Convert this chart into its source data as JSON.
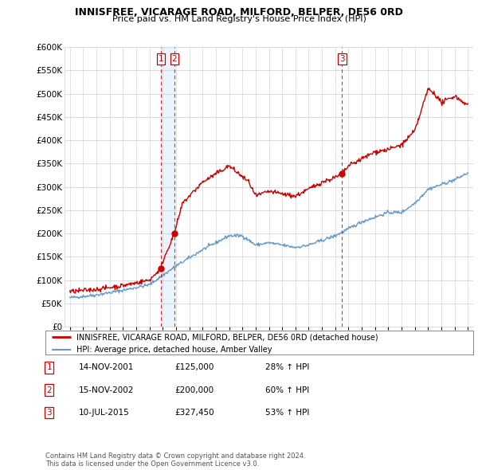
{
  "title": "INNISFREE, VICARAGE ROAD, MILFORD, BELPER, DE56 0RD",
  "subtitle": "Price paid vs. HM Land Registry's House Price Index (HPI)",
  "legend_line1": "INNISFREE, VICARAGE ROAD, MILFORD, BELPER, DE56 0RD (detached house)",
  "legend_line2": "HPI: Average price, detached house, Amber Valley",
  "footer": "Contains HM Land Registry data © Crown copyright and database right 2024.\nThis data is licensed under the Open Government Licence v3.0.",
  "transactions": [
    {
      "num": 1,
      "date": "14-NOV-2001",
      "price": "£125,000",
      "change": "28% ↑ HPI",
      "year": 2001.87,
      "val": 125000
    },
    {
      "num": 2,
      "date": "15-NOV-2002",
      "price": "£200,000",
      "change": "60% ↑ HPI",
      "year": 2002.87,
      "val": 200000
    },
    {
      "num": 3,
      "date": "10-JUL-2015",
      "price": "£327,450",
      "change": "53% ↑ HPI",
      "year": 2015.52,
      "val": 327450
    }
  ],
  "ylim": [
    0,
    600000
  ],
  "yticks": [
    0,
    50000,
    100000,
    150000,
    200000,
    250000,
    300000,
    350000,
    400000,
    450000,
    500000,
    550000,
    600000
  ],
  "red_color": "#cc0000",
  "blue_color": "#6699cc",
  "vline_color": "#cc0000",
  "bg_color": "#ffffff",
  "plot_bg": "#ffffff",
  "grid_color": "#cccccc",
  "shade_color": "#ddeeff"
}
